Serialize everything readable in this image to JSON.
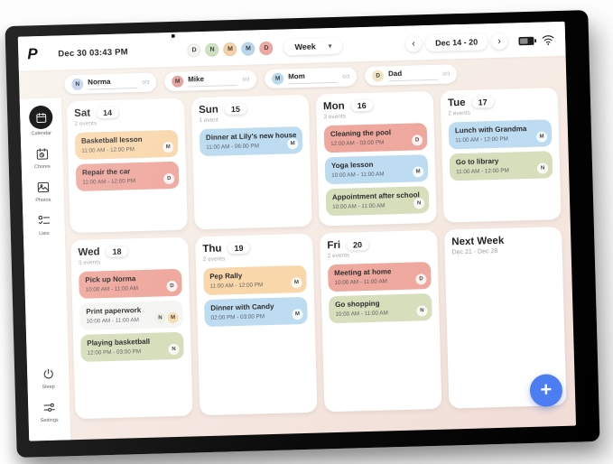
{
  "topbar": {
    "logo": "P",
    "datetime": "Dec 30 03:43 PM",
    "member_avatars": [
      {
        "initial": "D",
        "color": "#f6f4f1"
      },
      {
        "initial": "N",
        "color": "#cde2c0"
      },
      {
        "initial": "M",
        "color": "#f6d1a6"
      },
      {
        "initial": "M",
        "color": "#b9d8ee"
      },
      {
        "initial": "D",
        "color": "#eeaaa2"
      }
    ],
    "view_selector": {
      "label": "Week",
      "caret": "▾"
    },
    "week_nav": {
      "prev": "‹",
      "range": "Dec 14 - 20",
      "next": "›"
    }
  },
  "members": [
    {
      "initial": "N",
      "name": "Norma",
      "count": "0/3",
      "avatar_color": "#c9d8ee"
    },
    {
      "initial": "M",
      "name": "Mike",
      "count": "0/3",
      "avatar_color": "#e2a69e"
    },
    {
      "initial": "M",
      "name": "Mom",
      "count": "0/3",
      "avatar_color": "#b9d8ee"
    },
    {
      "initial": "D",
      "name": "Dad",
      "count": "0/3",
      "avatar_color": "#f0e6c8"
    }
  ],
  "sidebar": [
    {
      "label": "Calendar"
    },
    {
      "label": "Chores"
    },
    {
      "label": "Photos"
    },
    {
      "label": "Lists"
    },
    {
      "label": "Sleep"
    },
    {
      "label": "Settings"
    }
  ],
  "days": [
    {
      "name": "Sat",
      "date": "14",
      "count": "2 events",
      "events": [
        {
          "title": "Basketball lesson",
          "time": "11:00 AM - 12:00 PM",
          "color": "#f9d7ab",
          "avatars": [
            {
              "initial": "M",
              "bg": "rgba(255,255,255,0.85)"
            }
          ]
        },
        {
          "title": "Repair the car",
          "time": "11:00 AM - 12:00 PM",
          "color": "#efa89e",
          "avatars": [
            {
              "initial": "D",
              "bg": "rgba(255,255,255,0.85)"
            }
          ]
        }
      ]
    },
    {
      "name": "Sun",
      "date": "15",
      "count": "1 event",
      "events": [
        {
          "title": "Dinner at Lily's new house",
          "time": "11:00 AM - 06:00 PM",
          "color": "#bddcf1",
          "avatars": [
            {
              "initial": "M",
              "bg": "rgba(255,255,255,0.85)"
            }
          ]
        }
      ]
    },
    {
      "name": "Mon",
      "date": "16",
      "count": "3 events",
      "events": [
        {
          "title": "Cleaning the pool",
          "time": "12:00 AM - 03:00 PM",
          "color": "#efa89e",
          "avatars": [
            {
              "initial": "D",
              "bg": "rgba(255,255,255,0.85)"
            }
          ]
        },
        {
          "title": "Yoga lesson",
          "time": "10:00 AM - 11:00 AM",
          "color": "#bddcf1",
          "avatars": [
            {
              "initial": "M",
              "bg": "rgba(255,255,255,0.85)"
            }
          ]
        },
        {
          "title": "Appointment after school",
          "time": "10:00 AM - 11:00 AM",
          "color": "#d6debc",
          "avatars": [
            {
              "initial": "N",
              "bg": "rgba(255,255,255,0.85)"
            }
          ]
        }
      ]
    },
    {
      "name": "Tue",
      "date": "17",
      "count": "2 events",
      "events": [
        {
          "title": "Lunch with Grandma",
          "time": "11:00 AM - 12:00 PM",
          "color": "#bddcf1",
          "avatars": [
            {
              "initial": "M",
              "bg": "rgba(255,255,255,0.85)"
            }
          ]
        },
        {
          "title": "Go to library",
          "time": "11:00 AM - 12:00 PM",
          "color": "#d6debc",
          "avatars": [
            {
              "initial": "N",
              "bg": "rgba(255,255,255,0.85)"
            }
          ]
        }
      ]
    },
    {
      "name": "Wed",
      "date": "18",
      "count": "3 events",
      "events": [
        {
          "title": "Pick up Norma",
          "time": "10:00 AM - 11:00 AM",
          "color": "#efa89e",
          "avatars": [
            {
              "initial": "D",
              "bg": "rgba(255,255,255,0.85)"
            }
          ]
        },
        {
          "title": "Print paperwork",
          "time": "10:00 AM - 11:00 AM",
          "color": "#f5f5f3",
          "avatars": [
            {
              "initial": "N",
              "bg": "#eff0e6"
            },
            {
              "initial": "M",
              "bg": "#f7dcb4"
            }
          ]
        },
        {
          "title": "Playing basketball",
          "time": "12:00 PM - 03:00 PM",
          "color": "#d6debc",
          "avatars": [
            {
              "initial": "N",
              "bg": "rgba(255,255,255,0.85)"
            }
          ]
        }
      ]
    },
    {
      "name": "Thu",
      "date": "19",
      "count": "2 events",
      "events": [
        {
          "title": "Pep Rally",
          "time": "11:00 AM - 12:00 PM",
          "color": "#f9d7ab",
          "avatars": [
            {
              "initial": "M",
              "bg": "rgba(255,255,255,0.85)"
            }
          ]
        },
        {
          "title": "Dinner with Candy",
          "time": "02:00 PM - 03:00 PM",
          "color": "#bddcf1",
          "avatars": [
            {
              "initial": "M",
              "bg": "rgba(255,255,255,0.85)"
            }
          ]
        }
      ]
    },
    {
      "name": "Fri",
      "date": "20",
      "count": "2 events",
      "events": [
        {
          "title": "Meeting at home",
          "time": "10:00 AM - 11:00 AM",
          "color": "#efa89e",
          "avatars": [
            {
              "initial": "D",
              "bg": "rgba(255,255,255,0.85)"
            }
          ]
        },
        {
          "title": "Go shopping",
          "time": "10:00 AM - 11:00 AM",
          "color": "#d6debc",
          "avatars": [
            {
              "initial": "N",
              "bg": "rgba(255,255,255,0.85)"
            }
          ]
        }
      ]
    },
    {
      "name": "Next Week",
      "subtitle": "Dec 21 - Dec 28",
      "events": []
    }
  ],
  "fab": {
    "label": "+",
    "color": "#4d7df2"
  }
}
